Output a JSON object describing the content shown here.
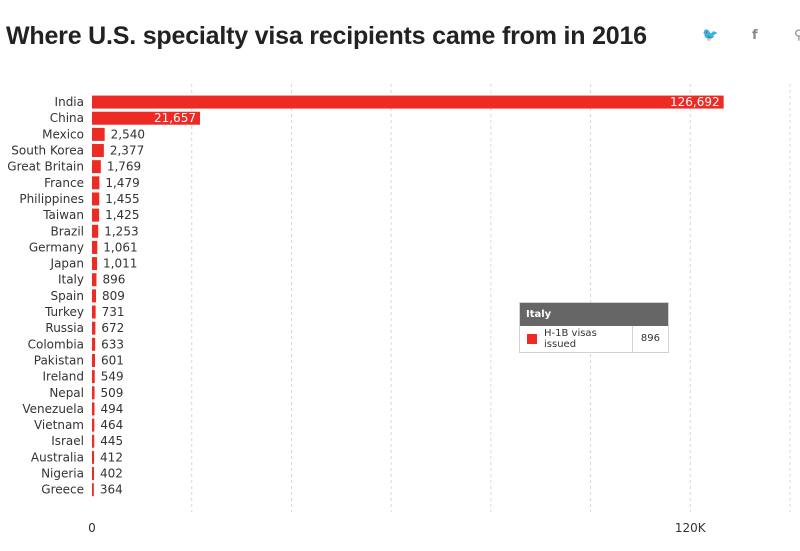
{
  "title": "Where U.S. specialty visa recipients came from in 2016",
  "share": {
    "twitter_glyph": "🐦",
    "facebook_glyph": "f",
    "more_glyph": "⚲"
  },
  "colors": {
    "bar": "#ee2a24",
    "bar_label": "#ffffff",
    "grid": "#d8d8d8",
    "text": "#333333"
  },
  "tooltip": {
    "category": "Italy",
    "series": "H-1B visas issued",
    "value": "896"
  },
  "chart_data": {
    "type": "bar",
    "orientation": "horizontal",
    "title": "Where U.S. specialty visa recipients came from in 2016",
    "categories": [
      "India",
      "China",
      "Mexico",
      "South Korea",
      "Great Britain",
      "France",
      "Philippines",
      "Taiwan",
      "Brazil",
      "Germany",
      "Japan",
      "Italy",
      "Spain",
      "Turkey",
      "Russia",
      "Colombia",
      "Pakistan",
      "Ireland",
      "Nepal",
      "Venezuela",
      "Vietnam",
      "Israel",
      "Australia",
      "Nigeria",
      "Greece"
    ],
    "series": [
      {
        "name": "H-1B visas issued",
        "values": [
          126692,
          21657,
          2540,
          2377,
          1769,
          1479,
          1455,
          1425,
          1253,
          1061,
          1011,
          896,
          809,
          731,
          672,
          633,
          601,
          549,
          509,
          494,
          464,
          445,
          412,
          402,
          364
        ]
      }
    ],
    "value_labels": [
      "126,692",
      "21,657",
      "2,540",
      "2,377",
      "1,769",
      "1,479",
      "1,455",
      "1,425",
      "1,253",
      "1,061",
      "1,011",
      "896",
      "809",
      "731",
      "672",
      "633",
      "601",
      "549",
      "509",
      "494",
      "464",
      "445",
      "412",
      "402",
      "364"
    ],
    "xlim": [
      0,
      140000
    ],
    "xticks": [
      0,
      120000
    ],
    "xtick_labels": [
      "0",
      "120K"
    ],
    "grid": true,
    "legend": "none"
  }
}
